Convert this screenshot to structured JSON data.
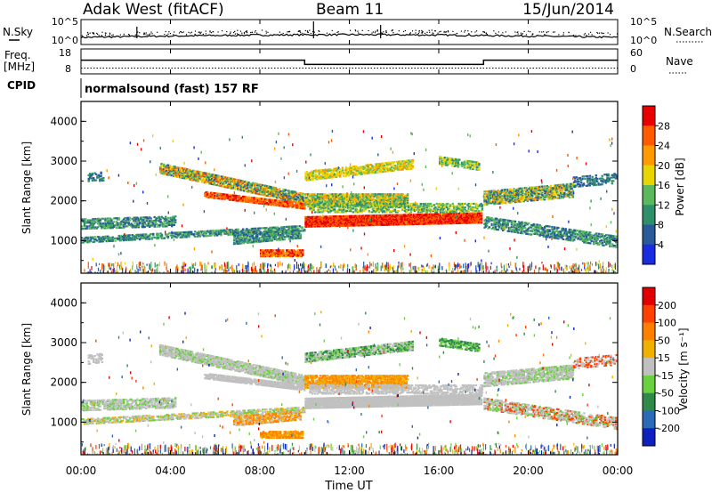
{
  "header": {
    "station": "Adak West (fitACF)",
    "beam": "Beam 11",
    "date": "15/Jun/2014"
  },
  "labels": {
    "nsky": "N.Sky",
    "nsearch": "N.Search",
    "freq_line1": "Freq.",
    "freq_line2": "[MHz]",
    "nave": "Nave",
    "cpid": "CPID",
    "cpid_value": "normalsound (fast) 157 RF",
    "x_axis_title": "Time UT"
  },
  "colors": {
    "power_scale": [
      "#1a2de0",
      "#2a5a9a",
      "#2f8f6a",
      "#5cb85c",
      "#e8d500",
      "#ff9a00",
      "#ff5a00",
      "#e80000"
    ],
    "velocity_scale": [
      "#1020c0",
      "#2a6ab8",
      "#2f8a4a",
      "#6ad040",
      "#c0c0c0",
      "#f0b000",
      "#ff8000",
      "#ff4000",
      "#e00000"
    ],
    "ground_scatter": "#b4b4b4"
  },
  "chart_data": [
    {
      "type": "line",
      "panel": "noise",
      "title": "",
      "y_ticks_left": [
        "10^5",
        "10^0"
      ],
      "y_ticks_right": [
        "10^5",
        "10^0"
      ],
      "series": [
        {
          "name": "N.Sky"
        },
        {
          "name": "N.Search"
        }
      ]
    },
    {
      "type": "line",
      "panel": "frequency-nave",
      "y_ticks_left": [
        "18",
        "8"
      ],
      "y_ticks_right": [
        "60",
        "0"
      ],
      "series": [
        {
          "name": "Freq.",
          "x": [
            "00:00",
            "10:00",
            "10:00",
            "18:00",
            "18:00",
            "24:00"
          ],
          "values": [
            13.5,
            13.5,
            11.8,
            11.8,
            13.5,
            13.5
          ]
        },
        {
          "name": "Nave",
          "values": [
            14,
            14,
            14,
            14,
            14,
            14
          ]
        }
      ]
    },
    {
      "type": "heatmap",
      "panel": "power",
      "ylabel": "Slant Range [km]",
      "xlabel": "Time UT",
      "ylim": [
        180,
        4500
      ],
      "xlim": [
        "00:00",
        "24:00"
      ],
      "y_ticks": [
        "1000",
        "2000",
        "3000",
        "4000"
      ],
      "x_ticks": [
        "00:00",
        "04:00",
        "08:00",
        "12:00",
        "16:00",
        "20:00",
        "00:00"
      ],
      "colorbar": {
        "label": "Power [dB]",
        "ticks": [
          "4",
          "8",
          "12",
          "16",
          "20",
          "24",
          "28"
        ]
      }
    },
    {
      "type": "heatmap",
      "panel": "velocity",
      "ylabel": "Slant Range [km]",
      "xlabel": "Time UT",
      "ylim": [
        180,
        4500
      ],
      "xlim": [
        "00:00",
        "24:00"
      ],
      "y_ticks": [
        "1000",
        "2000",
        "3000",
        "4000"
      ],
      "x_ticks": [
        "00:00",
        "04:00",
        "08:00",
        "12:00",
        "16:00",
        "20:00",
        "00:00"
      ],
      "colorbar": {
        "label": "Velocity [m s⁻¹]",
        "ticks": [
          "200",
          "100",
          "50",
          "15",
          "-15",
          "-50",
          "-100",
          "-200"
        ]
      }
    }
  ]
}
